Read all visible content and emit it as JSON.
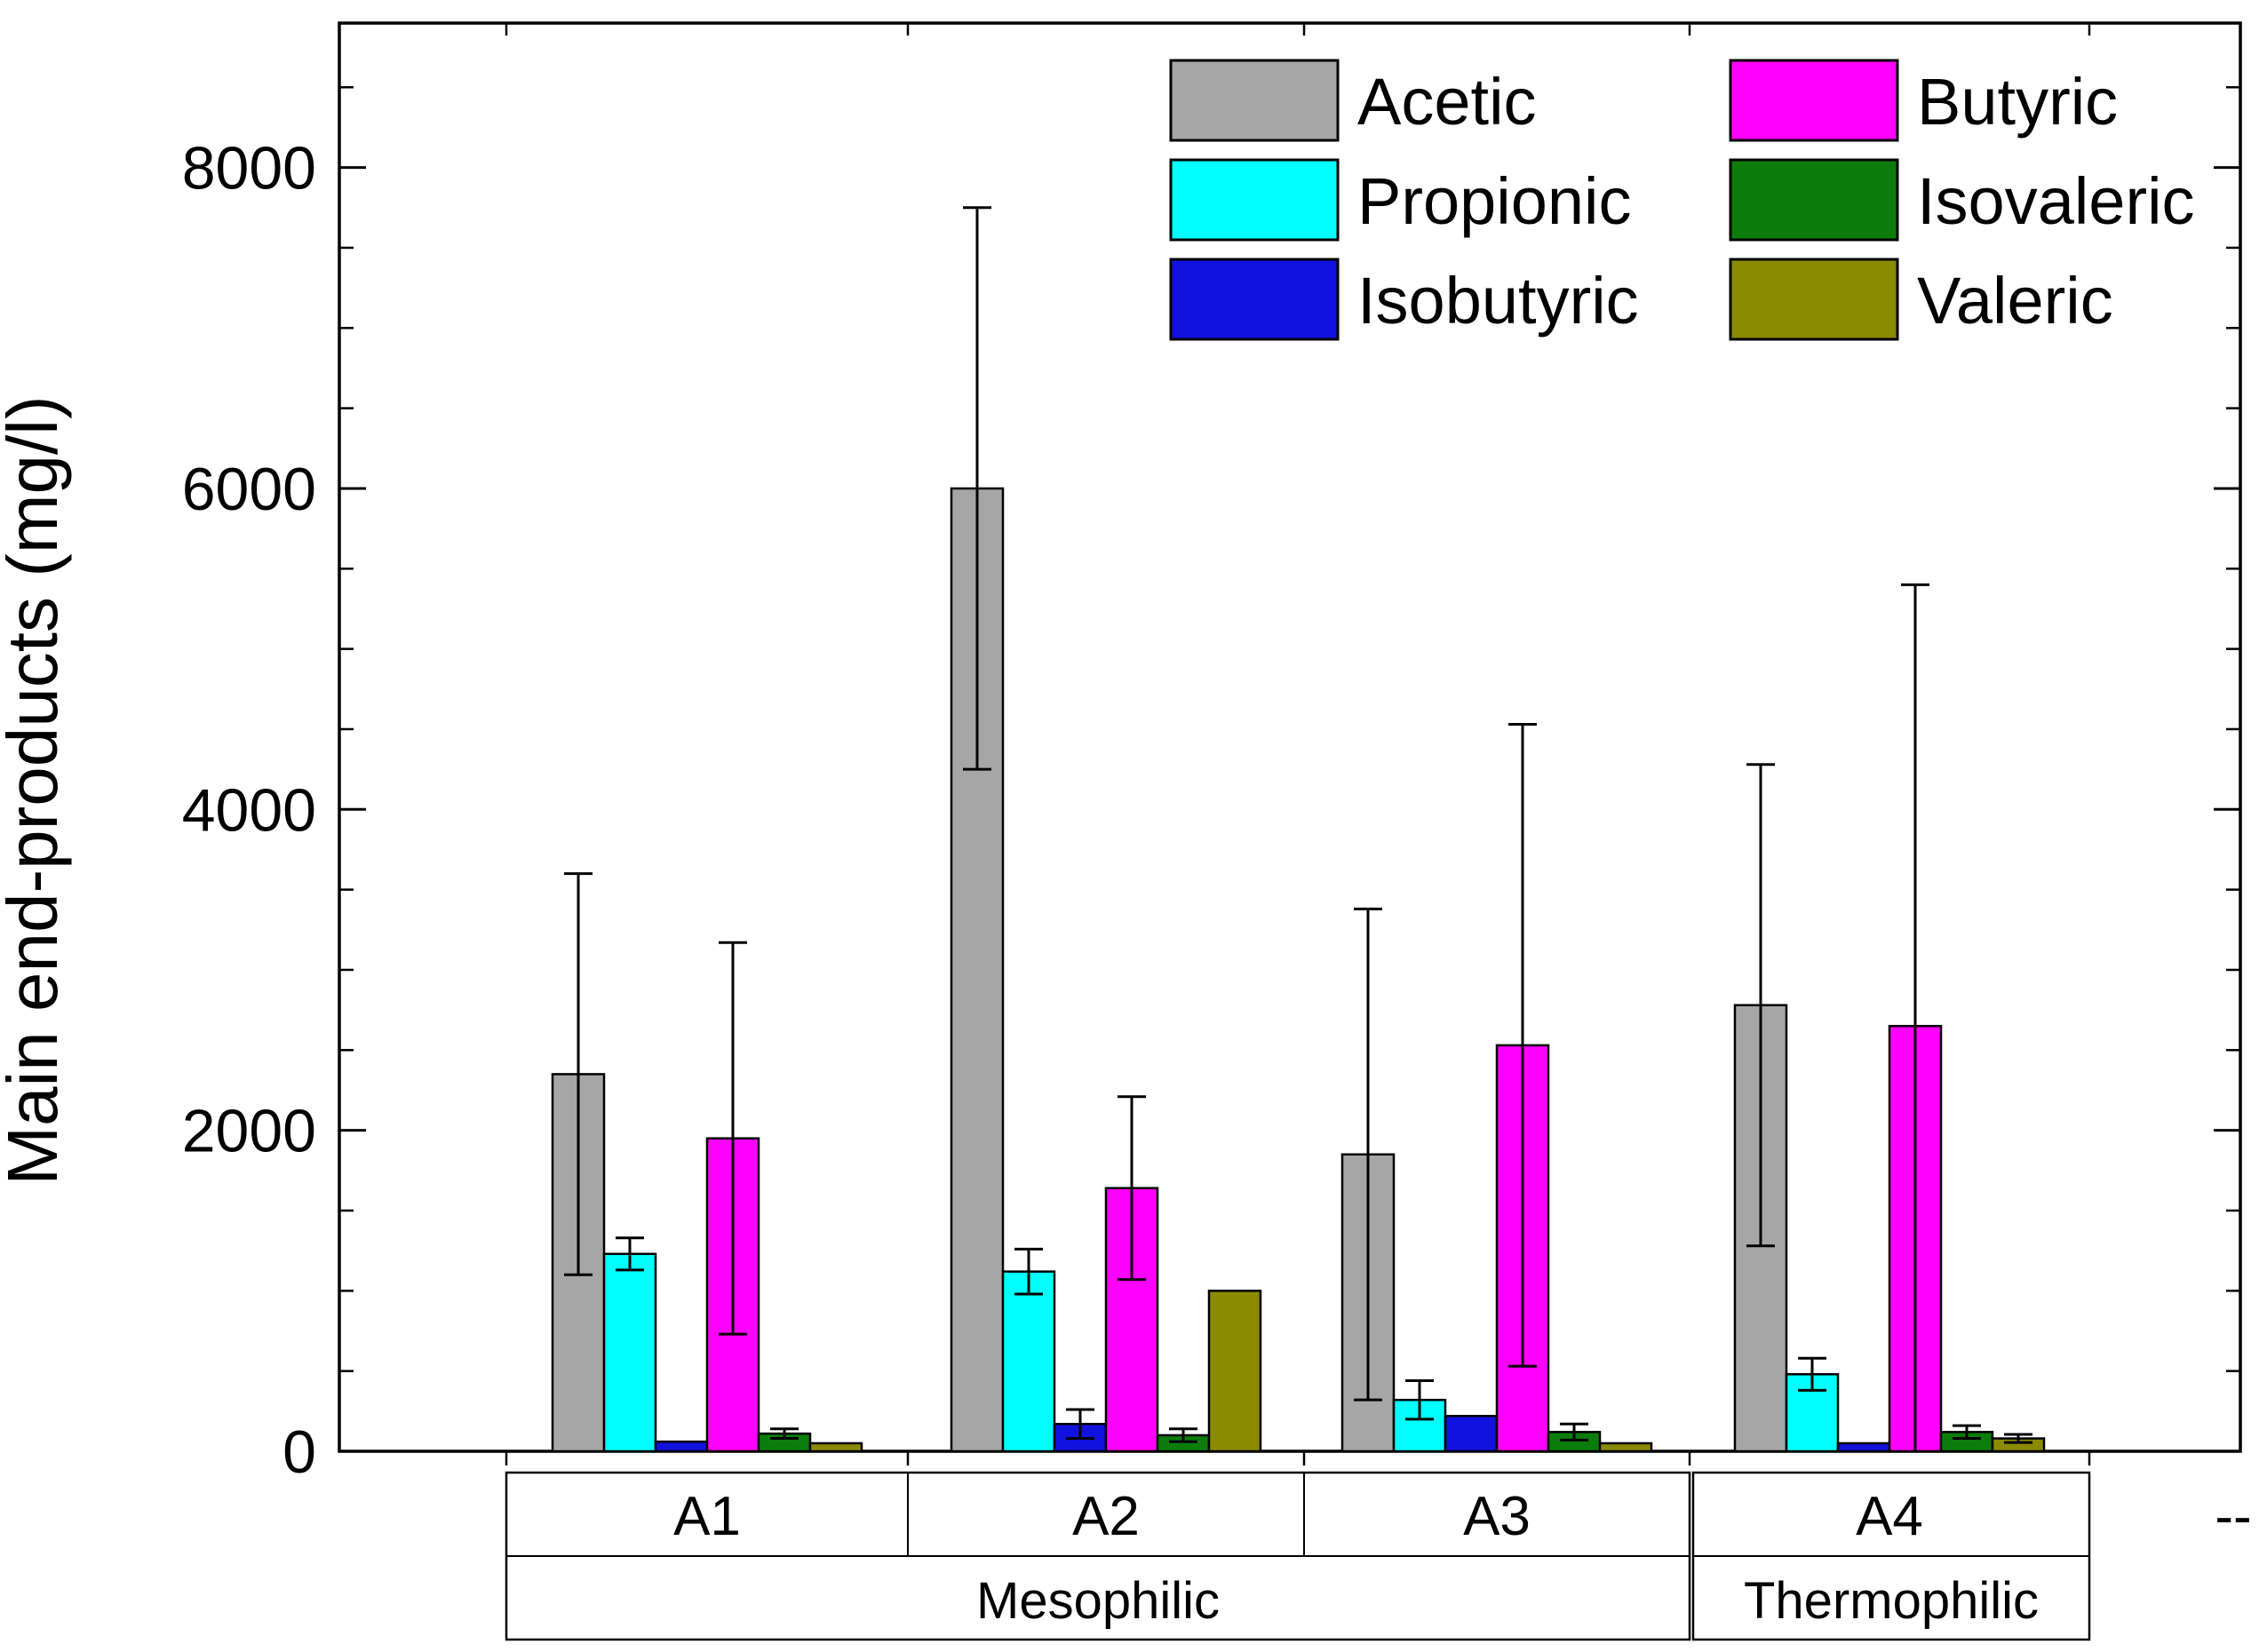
{
  "figure": {
    "ylabel": "Main end-products (mg/l)",
    "x_axis_overflow_label": "--"
  },
  "chart_data": {
    "type": "bar",
    "title": "",
    "ylabel": "Main end-products (mg/l)",
    "xlabel": "",
    "ylim": [
      0,
      8900
    ],
    "yticks_major": [
      0,
      2000,
      4000,
      6000,
      8000
    ],
    "ytick_labels": [
      "0",
      "2000",
      "4000",
      "6000",
      "8000"
    ],
    "ytick_minor_step": 500,
    "grid": false,
    "legend_position": "top-center-two-columns",
    "legend_columns": [
      [
        "Acetic",
        "Propionic",
        "Isobutyric"
      ],
      [
        "Butyric",
        "Isovaleric",
        "Valeric"
      ]
    ],
    "categories": [
      "A1",
      "A2",
      "A3",
      "A4"
    ],
    "category_groups": [
      {
        "label": "Mesophilic",
        "categories": [
          "A1",
          "A2",
          "A3"
        ]
      },
      {
        "label": "Thermophilic",
        "categories": [
          "A4"
        ]
      }
    ],
    "axis_overflow_label": "--",
    "error_bars": "plus-minus, black caps",
    "series": [
      {
        "name": "Acetic",
        "color": "#a6a6a6",
        "values": [
          2350,
          6000,
          1850,
          2780
        ],
        "errors": [
          1250,
          1750,
          1530,
          1500
        ]
      },
      {
        "name": "Propionic",
        "color": "#00ffff",
        "values": [
          1230,
          1120,
          320,
          480
        ],
        "errors": [
          100,
          140,
          120,
          100
        ]
      },
      {
        "name": "Isobutyric",
        "color": "#1212e0",
        "values": [
          60,
          170,
          220,
          50
        ],
        "errors": [
          0,
          90,
          0,
          0
        ]
      },
      {
        "name": "Butyric",
        "color": "#ff00ff",
        "values": [
          1950,
          1640,
          2530,
          2650
        ],
        "errors": [
          1220,
          570,
          2000,
          2750
        ]
      },
      {
        "name": "Isovaleric",
        "color": "#0c7d0c",
        "values": [
          110,
          100,
          120,
          120
        ],
        "errors": [
          30,
          40,
          50,
          40
        ]
      },
      {
        "name": "Valeric",
        "color": "#8b8b00",
        "values": [
          50,
          1000,
          50,
          80
        ],
        "errors": [
          0,
          0,
          0,
          25
        ]
      }
    ]
  }
}
